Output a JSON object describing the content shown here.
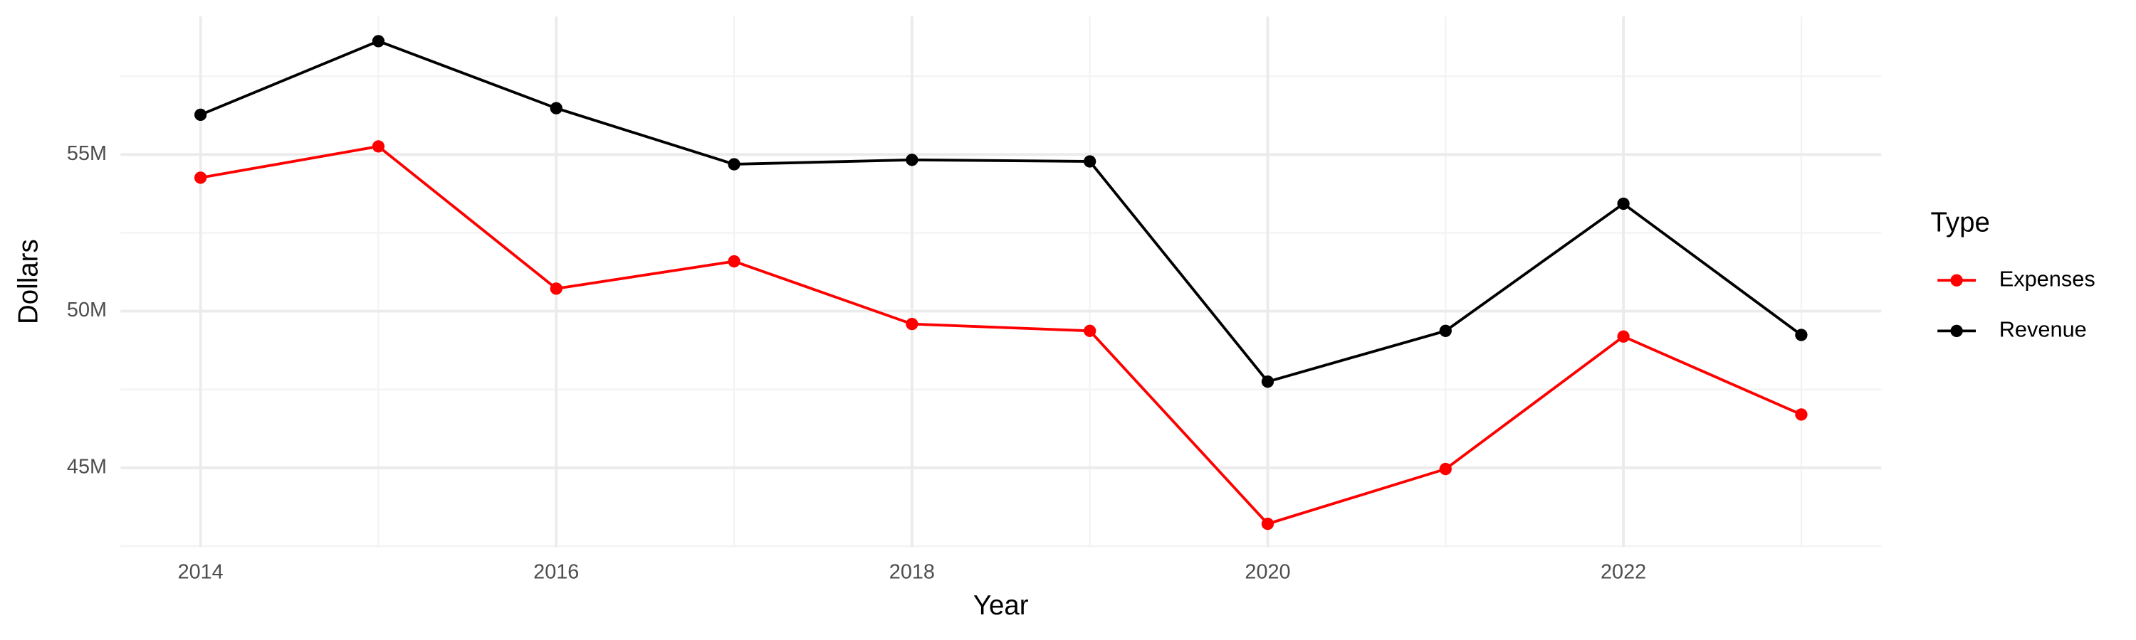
{
  "chart_data": {
    "type": "line",
    "x_label": "Year",
    "y_label": "Dollars",
    "x": [
      2014,
      2015,
      2016,
      2017,
      2018,
      2019,
      2020,
      2021,
      2022,
      2023
    ],
    "series": [
      {
        "name": "Expenses",
        "color": "#ff0000",
        "values": [
          54260000,
          55260000,
          50720000,
          51590000,
          49590000,
          49370000,
          43210000,
          44960000,
          49190000,
          46700000
        ]
      },
      {
        "name": "Revenue",
        "color": "#000000",
        "values": [
          56270000,
          58620000,
          56480000,
          54690000,
          54830000,
          54780000,
          47750000,
          49370000,
          53430000,
          49240000
        ]
      }
    ],
    "xlim": [
      2013.55,
      2023.45
    ],
    "ylim": [
      42470000,
      59410000
    ],
    "xticks": [
      2014,
      2016,
      2018,
      2020,
      2022
    ],
    "yticks": [
      {
        "value": 45000000,
        "label": "45M"
      },
      {
        "value": 50000000,
        "label": "50M"
      },
      {
        "value": 55000000,
        "label": "55M"
      }
    ],
    "grid": true,
    "legend_title": "Type",
    "legend_position": "right"
  }
}
